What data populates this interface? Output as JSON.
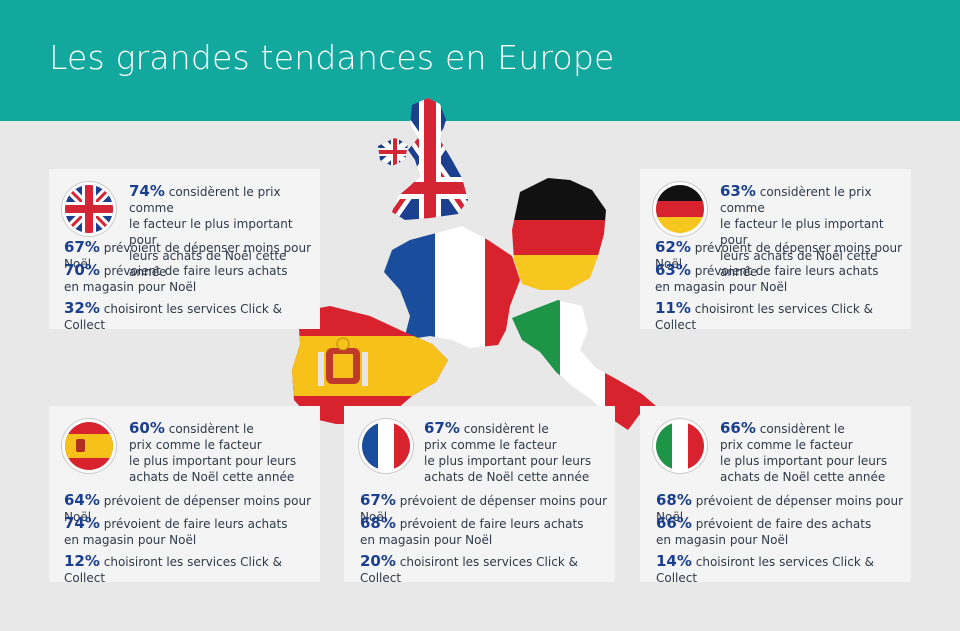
{
  "page": {
    "title": "Les grandes tendances en Europe",
    "colors": {
      "header": "#12a89d",
      "background": "#e8e8e8",
      "card": "#f4f4f4",
      "accent": "#1b3f8f"
    }
  },
  "cards": {
    "uk": {
      "flag_icon": "uk-flag-icon",
      "s1": {
        "pct": "74%",
        "text": "considèrent le prix comme",
        "text2": "le facteur le plus important pour",
        "text3": "leurs achats de Noël cette année"
      },
      "s2": {
        "pct": "67%",
        "text": "prévoient de dépenser moins pour Noël"
      },
      "s3": {
        "pct": "70%",
        "text": "prévoient de faire leurs achats",
        "text2": "en magasin pour Noël"
      },
      "s4": {
        "pct": "32%",
        "text": "choisiront les services Click & Collect"
      }
    },
    "de": {
      "flag_icon": "germany-flag-icon",
      "s1": {
        "pct": "63%",
        "text": "considèrent le prix comme",
        "text2": "le facteur le plus important pour",
        "text3": "leurs achats de Noël cette année"
      },
      "s2": {
        "pct": "62%",
        "text": "prévoient de dépenser moins pour Noël"
      },
      "s3": {
        "pct": "63%",
        "text": "prévoient de faire leurs achats",
        "text2": "en magasin pour Noël"
      },
      "s4": {
        "pct": "11%",
        "text": "choisiront les services Click & Collect"
      }
    },
    "es": {
      "flag_icon": "spain-flag-icon",
      "s1": {
        "pct": "60%",
        "text": "considèrent le",
        "text2": "prix comme le facteur",
        "text3": "le plus important pour leurs",
        "text4": "achats de Noël cette année"
      },
      "s2": {
        "pct": "64%",
        "text": "prévoient de dépenser moins pour Noël"
      },
      "s3": {
        "pct": "74%",
        "text": "prévoient de faire leurs achats",
        "text2": "en magasin pour Noël"
      },
      "s4": {
        "pct": "12%",
        "text": "choisiront les services Click & Collect"
      }
    },
    "fr": {
      "flag_icon": "france-flag-icon",
      "s1": {
        "pct": "67%",
        "text": "considèrent le",
        "text2": "prix comme le facteur",
        "text3": "le plus important pour leurs",
        "text4": "achats de Noël cette année"
      },
      "s2": {
        "pct": "67%",
        "text": "prévoient de dépenser moins pour Noël"
      },
      "s3": {
        "pct": "68%",
        "text": "prévoient de faire leurs achats",
        "text2": "en magasin pour Noël"
      },
      "s4": {
        "pct": "20%",
        "text": "choisiront les services Click & Collect"
      }
    },
    "it": {
      "flag_icon": "italy-flag-icon",
      "s1": {
        "pct": "66%",
        "text": "considèrent le",
        "text2": "prix comme le facteur",
        "text3": "le plus important pour leurs",
        "text4": "achats de Noël cette année"
      },
      "s2": {
        "pct": "68%",
        "text": "prévoient de dépenser moins pour Noël"
      },
      "s3": {
        "pct": "66%",
        "text": "prévoient de faire des achats",
        "text2": "en magasin pour Noël"
      },
      "s4": {
        "pct": "14%",
        "text": "choisiront les services Click & Collect"
      }
    }
  }
}
